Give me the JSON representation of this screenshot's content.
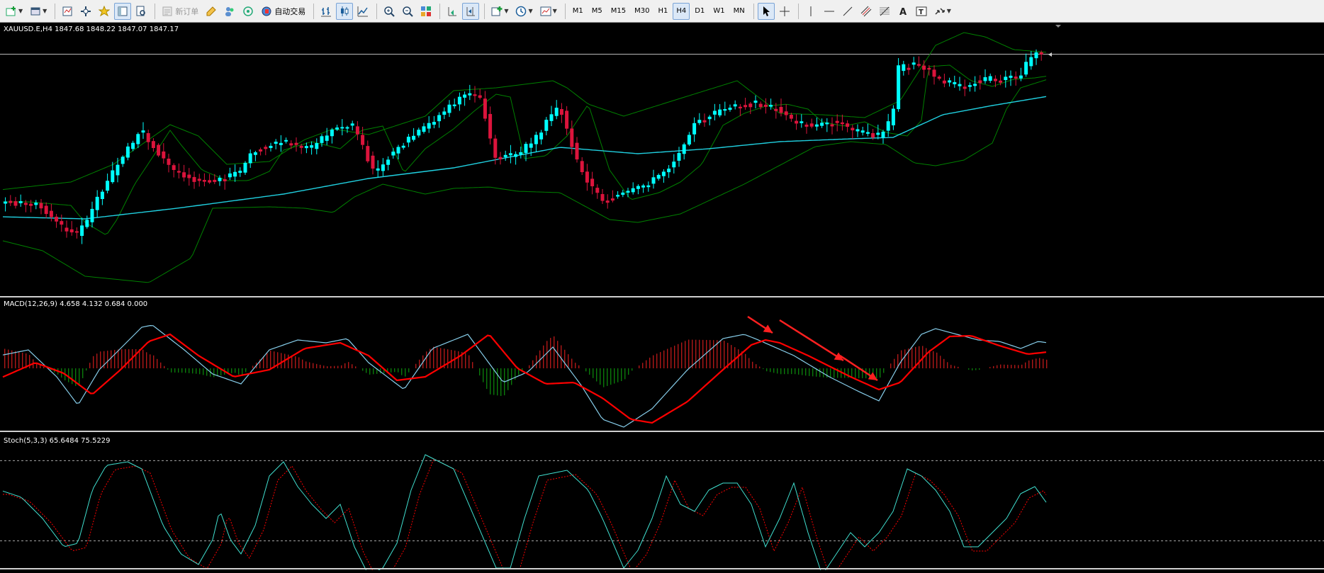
{
  "toolbar": {
    "new_order_label": "新订单",
    "auto_trading_label": "自动交易",
    "timeframes": [
      "M1",
      "M5",
      "M15",
      "M30",
      "H1",
      "H4",
      "D1",
      "W1",
      "MN"
    ],
    "active_timeframe": "H4"
  },
  "main_chart": {
    "header": "XAUUSD.E,H4  1847.68 1848.22 1847.07 1847.17",
    "bullish_color": "#00ffff",
    "bearish_color": "#dc143c",
    "band_color": "#008000",
    "ma_color": "#20d0e0"
  },
  "macd_panel": {
    "header": "MACD(12,26,9) 4.658 4.132 0.684 0.000",
    "macd_color": "#87ceeb",
    "signal_color": "#ff0000"
  },
  "stoch_panel": {
    "header": "Stoch(5,3,3) 65.6484 75.5229",
    "main_color": "#40e0d0",
    "signal_color": "#ff0000",
    "levels": [
      80,
      20
    ]
  }
}
